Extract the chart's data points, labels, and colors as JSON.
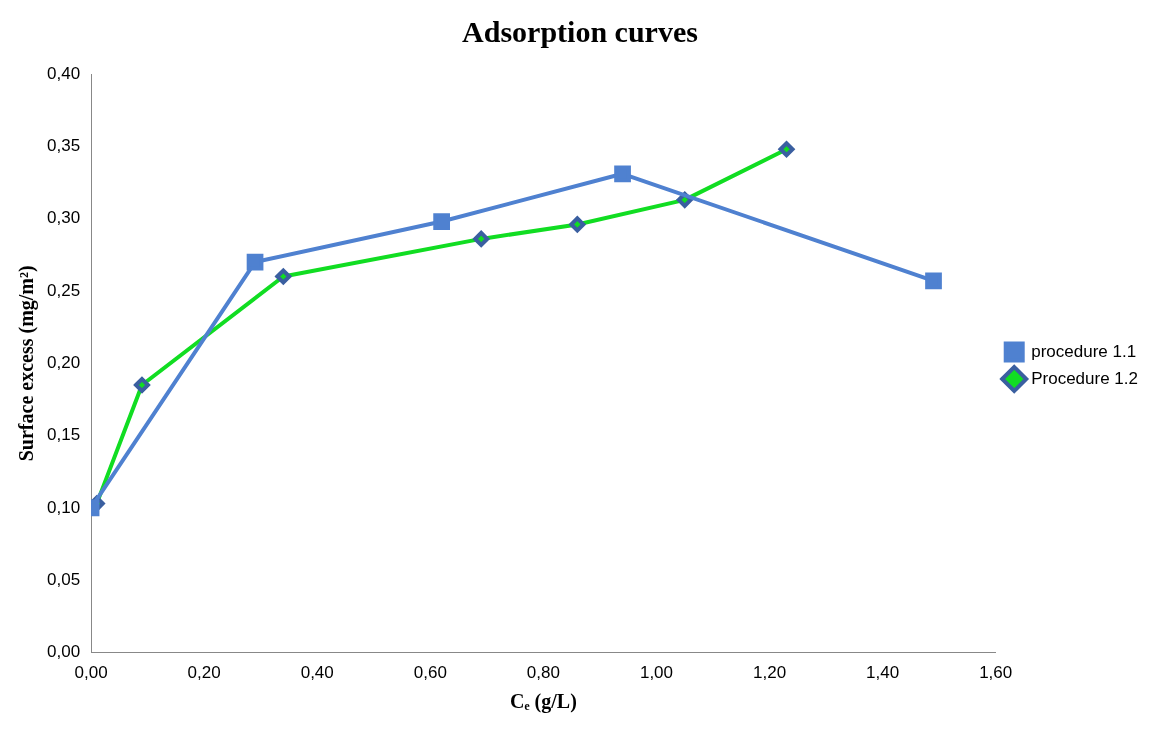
{
  "chart_data": {
    "type": "line",
    "title": "Adsorption curves",
    "xlabel": "Cₑ (g/L)",
    "ylabel": "Surface excess (mg/m²)",
    "xlim": [
      0,
      1.6
    ],
    "xticks": [
      {
        "value": 0,
        "label": "0,00"
      },
      {
        "value": 0.2,
        "label": "0,20"
      },
      {
        "value": 0.4,
        "label": "0,40"
      },
      {
        "value": 0.6,
        "label": "0,60"
      },
      {
        "value": 0.8,
        "label": "0,80"
      },
      {
        "value": 1.0,
        "label": "1,00"
      },
      {
        "value": 1.2,
        "label": "1,20"
      },
      {
        "value": 1.4,
        "label": "1,40"
      },
      {
        "value": 1.6,
        "label": "1,60"
      }
    ],
    "ylim": [
      0,
      0.4
    ],
    "yticks": [
      {
        "value": 0,
        "label": "0,00"
      },
      {
        "value": 0.05,
        "label": "0,05"
      },
      {
        "value": 0.1,
        "label": "0,10"
      },
      {
        "value": 0.15,
        "label": "0,15"
      },
      {
        "value": 0.2,
        "label": "0,20"
      },
      {
        "value": 0.25,
        "label": "0,25"
      },
      {
        "value": 0.3,
        "label": "0,30"
      },
      {
        "value": 0.35,
        "label": "0,35"
      },
      {
        "value": 0.4,
        "label": "0,40"
      }
    ],
    "grid": false,
    "legend": "right",
    "series": [
      {
        "name": "procedure 1.1",
        "marker": "square",
        "color": "#4f81d0",
        "x": [
          0.0,
          0.29,
          0.62,
          0.94,
          1.49
        ],
        "values": [
          0.1,
          0.27,
          0.298,
          0.331,
          0.257
        ]
      },
      {
        "name": "Procedure 1.2",
        "marker": "diamond",
        "color": "#11dd22",
        "x": [
          0.01,
          0.09,
          0.34,
          0.69,
          0.86,
          1.05,
          1.23
        ],
        "values": [
          0.103,
          0.185,
          0.26,
          0.286,
          0.296,
          0.313,
          0.348
        ]
      }
    ]
  }
}
